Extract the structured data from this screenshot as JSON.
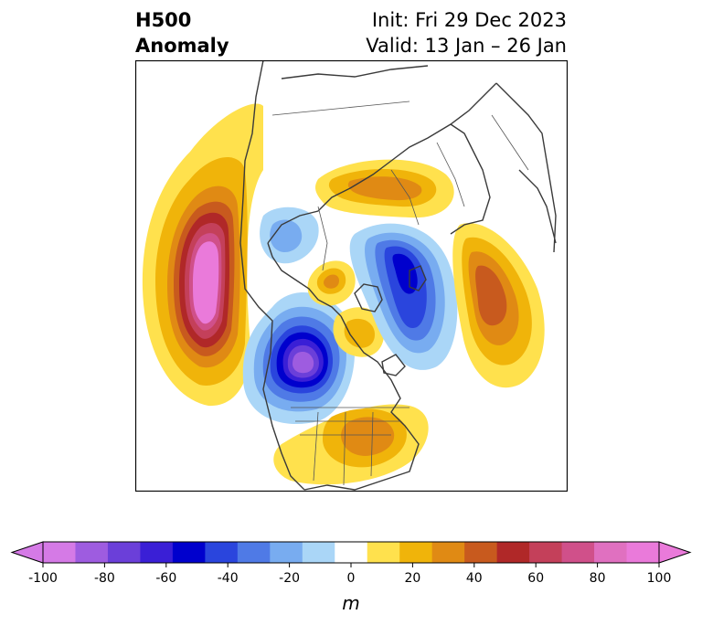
{
  "title": {
    "left_line1": "H500",
    "left_line2": "Anomaly",
    "right_line1": "Init: Fri 29 Dec 2023",
    "right_line2": "Valid: 13 Jan – 26 Jan"
  },
  "colorbar": {
    "unit": "m",
    "min": -100,
    "max": 100,
    "extend": "both",
    "tick_values": [
      -100,
      -80,
      -60,
      -40,
      -20,
      0,
      20,
      40,
      60,
      80,
      100
    ],
    "tick_labels": [
      "-100",
      "-80",
      "-60",
      "-40",
      "-20",
      "0",
      "20",
      "40",
      "60",
      "80",
      "100"
    ],
    "colors": [
      "#d57ae6",
      "#9e5ce0",
      "#6b3fd9",
      "#3a1fd6",
      "#0000cd",
      "#2a45dd",
      "#4f7ae6",
      "#78acf0",
      "#aad6f7",
      "#ffffff",
      "#ffe14d",
      "#f0b40a",
      "#e08a14",
      "#c85a1e",
      "#b02828",
      "#c4405a",
      "#d0508a",
      "#e070c0",
      "#ea7ada"
    ],
    "under_color": "#d57ae6",
    "over_color": "#ea7ada"
  },
  "map": {
    "projection": "polar stereographic, North America / North Pole",
    "anomalies": [
      {
        "region": "Northeast Pacific / Gulf of Alaska",
        "sign": "positive",
        "peak_m": 100
      },
      {
        "region": "Western Canada",
        "sign": "negative",
        "peak_m": -90
      },
      {
        "region": "Eastern United States",
        "sign": "positive",
        "peak_m": 40
      },
      {
        "region": "Arctic Ocean / Kara Sea",
        "sign": "negative",
        "peak_m": -60
      },
      {
        "region": "Western Siberia / Ural",
        "sign": "positive",
        "peak_m": 50
      },
      {
        "region": "Northern Greenland / Baffin Bay",
        "sign": "positive",
        "peak_m": 30
      },
      {
        "region": "Barents Sea / Northern Europe",
        "sign": "positive",
        "peak_m": 40
      },
      {
        "region": "Bering Strait / East Siberian Sea",
        "sign": "negative",
        "peak_m": -20
      }
    ]
  }
}
